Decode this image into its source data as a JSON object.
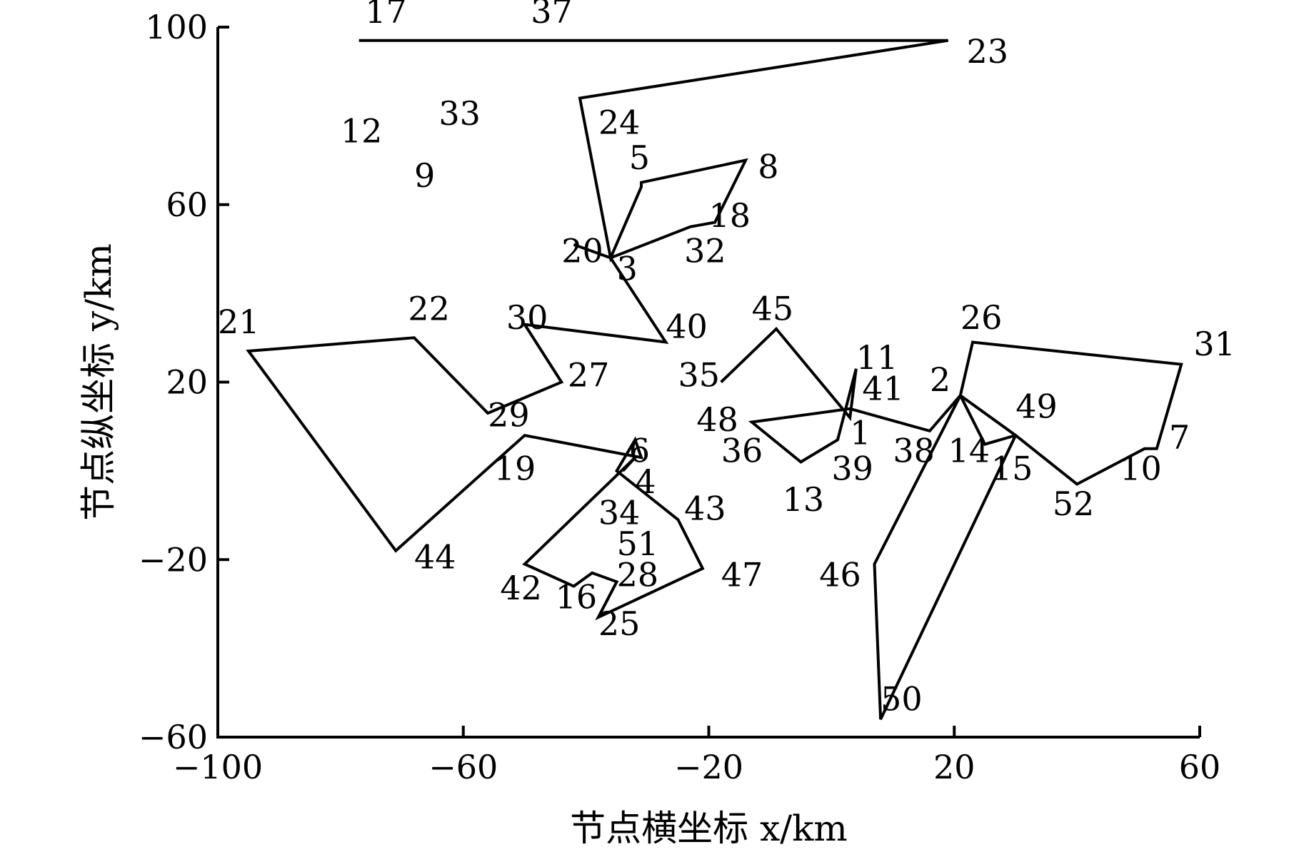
{
  "chart_data": {
    "type": "line",
    "title": "",
    "xlabel": "节点横坐标 x/km",
    "ylabel": "节点纵坐标 y/km",
    "xlim": [
      -100,
      60
    ],
    "ylim": [
      -60,
      100
    ],
    "xticks": [
      -100,
      -60,
      -20,
      20,
      60
    ],
    "yticks": [
      100,
      60,
      20,
      -20,
      -60
    ],
    "grid": false,
    "legend": "none",
    "series": [
      {
        "points": [
          {
            "x": -77,
            "y": 97,
            "label": "17"
          },
          {
            "x": -52,
            "y": 97,
            "label": "37"
          },
          {
            "x": 19,
            "y": 97,
            "label": "23"
          },
          {
            "x": -41,
            "y": 84,
            "label": "24"
          },
          {
            "x": -36,
            "y": 48,
            "label": "3"
          },
          {
            "x": -31,
            "y": 64,
            "label": "5"
          },
          {
            "x": -31,
            "y": 65,
            "label": ""
          },
          {
            "x": -14,
            "y": 70,
            "label": "8"
          },
          {
            "x": -19,
            "y": 56,
            "label": "18"
          },
          {
            "x": -23,
            "y": 55,
            "label": "32"
          },
          {
            "x": -36,
            "y": 48,
            "label": ""
          },
          {
            "x": -42,
            "y": 51,
            "label": "20"
          },
          {
            "x": -36,
            "y": 48,
            "label": ""
          },
          {
            "x": -27,
            "y": 29,
            "label": "40"
          },
          {
            "x": -50,
            "y": 33,
            "label": "30"
          },
          {
            "x": -44,
            "y": 20,
            "label": "27"
          },
          {
            "x": -56,
            "y": 13,
            "label": "29"
          },
          {
            "x": -68,
            "y": 30,
            "label": "22"
          },
          {
            "x": -95,
            "y": 27,
            "label": "21"
          },
          {
            "x": -71,
            "y": -18,
            "label": "44"
          },
          {
            "x": -50,
            "y": 8,
            "label": "19"
          },
          {
            "x": -31,
            "y": 3,
            "label": "4"
          },
          {
            "x": -32,
            "y": 7,
            "label": "6"
          },
          {
            "x": -35,
            "y": 0,
            "label": "34"
          },
          {
            "x": -25,
            "y": -11,
            "label": "43"
          },
          {
            "x": -21,
            "y": -22,
            "label": "47"
          },
          {
            "x": -38,
            "y": -33,
            "label": "25"
          },
          {
            "x": -35,
            "y": -25,
            "label": "28"
          },
          {
            "x": -39,
            "y": -23,
            "label": "51"
          },
          {
            "x": -42,
            "y": -26,
            "label": "16"
          },
          {
            "x": -50,
            "y": -21,
            "label": "42"
          },
          {
            "x": -32,
            "y": 3,
            "label": ""
          },
          {
            "x": -34,
            "y": 0,
            "label": ""
          }
        ]
      },
      {
        "points": [
          {
            "x": -18,
            "y": 20,
            "label": "35"
          },
          {
            "x": -9,
            "y": 32,
            "label": "45"
          },
          {
            "x": 3,
            "y": 12,
            "label": "41"
          },
          {
            "x": 4,
            "y": 23,
            "label": "11"
          },
          {
            "x": 1,
            "y": 7,
            "label": "39"
          },
          {
            "x": -5,
            "y": 2,
            "label": "13"
          },
          {
            "x": -13,
            "y": 11,
            "label": "36"
          },
          {
            "x": 3,
            "y": 14,
            "label": "1"
          },
          {
            "x": 16,
            "y": 9,
            "label": "38"
          },
          {
            "x": 21,
            "y": 17,
            "label": "2"
          },
          {
            "x": 23,
            "y": 29,
            "label": "26"
          },
          {
            "x": 57,
            "y": 24,
            "label": "31"
          },
          {
            "x": 53,
            "y": 5,
            "label": "7"
          },
          {
            "x": 51,
            "y": 5,
            "label": "10"
          },
          {
            "x": 40,
            "y": -3,
            "label": "52"
          },
          {
            "x": 30,
            "y": 8,
            "label": "49"
          },
          {
            "x": 25,
            "y": 6,
            "label": "15"
          },
          {
            "x": 21,
            "y": 17,
            "label": "14"
          },
          {
            "x": 7,
            "y": -21,
            "label": "46"
          },
          {
            "x": 8,
            "y": -56,
            "label": "50"
          },
          {
            "x": 30,
            "y": 8,
            "label": ""
          },
          {
            "x": 21,
            "y": 17,
            "label": ""
          }
        ]
      }
    ],
    "node_labels": [
      {
        "text": "17",
        "x": -76,
        "y": 101
      },
      {
        "text": "37",
        "x": -49,
        "y": 101
      },
      {
        "text": "23",
        "x": 22,
        "y": 92
      },
      {
        "text": "24",
        "x": -38,
        "y": 76
      },
      {
        "text": "12",
        "x": -80,
        "y": 74
      },
      {
        "text": "33",
        "x": -64,
        "y": 78
      },
      {
        "text": "9",
        "x": -68,
        "y": 64
      },
      {
        "text": "5",
        "x": -33,
        "y": 68
      },
      {
        "text": "8",
        "x": -12,
        "y": 66
      },
      {
        "text": "18",
        "x": -20,
        "y": 55
      },
      {
        "text": "20",
        "x": -44,
        "y": 47
      },
      {
        "text": "32",
        "x": -24,
        "y": 47
      },
      {
        "text": "3",
        "x": -35,
        "y": 43
      },
      {
        "text": "21",
        "x": -100,
        "y": 31
      },
      {
        "text": "22",
        "x": -69,
        "y": 34
      },
      {
        "text": "30",
        "x": -53,
        "y": 32
      },
      {
        "text": "40",
        "x": -27,
        "y": 30
      },
      {
        "text": "45",
        "x": -13,
        "y": 34
      },
      {
        "text": "26",
        "x": 21,
        "y": 32
      },
      {
        "text": "31",
        "x": 59,
        "y": 26
      },
      {
        "text": "27",
        "x": -43,
        "y": 19
      },
      {
        "text": "35",
        "x": -25,
        "y": 19
      },
      {
        "text": "11",
        "x": 4,
        "y": 23
      },
      {
        "text": "41",
        "x": 5,
        "y": 16
      },
      {
        "text": "2",
        "x": 16,
        "y": 18
      },
      {
        "text": "49",
        "x": 30,
        "y": 12
      },
      {
        "text": "29",
        "x": -56,
        "y": 10
      },
      {
        "text": "48",
        "x": -22,
        "y": 9
      },
      {
        "text": "1",
        "x": 3,
        "y": 6
      },
      {
        "text": "7",
        "x": 55,
        "y": 5
      },
      {
        "text": "6",
        "x": -33,
        "y": 2
      },
      {
        "text": "36",
        "x": -18,
        "y": 2
      },
      {
        "text": "38",
        "x": 10,
        "y": 2
      },
      {
        "text": "14",
        "x": 19,
        "y": 2
      },
      {
        "text": "19",
        "x": -55,
        "y": -2
      },
      {
        "text": "39",
        "x": 0,
        "y": -2
      },
      {
        "text": "15",
        "x": 26,
        "y": -2
      },
      {
        "text": "10",
        "x": 47,
        "y": -2
      },
      {
        "text": "4",
        "x": -32,
        "y": -5
      },
      {
        "text": "13",
        "x": -8,
        "y": -9
      },
      {
        "text": "52",
        "x": 36,
        "y": -10
      },
      {
        "text": "34",
        "x": -38,
        "y": -12
      },
      {
        "text": "43",
        "x": -24,
        "y": -11
      },
      {
        "text": "51",
        "x": -35,
        "y": -19
      },
      {
        "text": "44",
        "x": -68,
        "y": -22
      },
      {
        "text": "46",
        "x": -2,
        "y": -26
      },
      {
        "text": "28",
        "x": -35,
        "y": -26
      },
      {
        "text": "47",
        "x": -18,
        "y": -26
      },
      {
        "text": "42",
        "x": -54,
        "y": -29
      },
      {
        "text": "16",
        "x": -45,
        "y": -31
      },
      {
        "text": "25",
        "x": -38,
        "y": -37
      },
      {
        "text": "50",
        "x": 8,
        "y": -54
      }
    ]
  }
}
